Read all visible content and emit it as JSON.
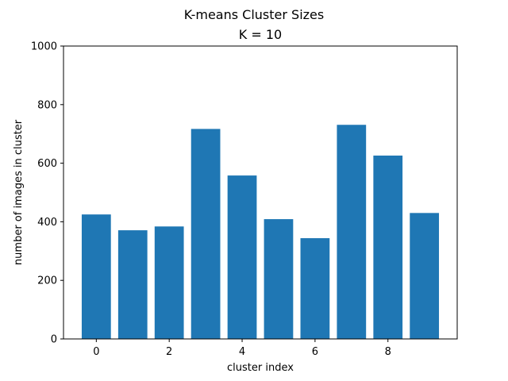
{
  "chart_data": {
    "type": "bar",
    "suptitle": "K-means Cluster Sizes",
    "title": "K = 10",
    "xlabel": "cluster index",
    "ylabel": "number of images in cluster",
    "categories": [
      0,
      1,
      2,
      3,
      4,
      5,
      6,
      7,
      8,
      9
    ],
    "values": [
      425,
      371,
      384,
      717,
      558,
      409,
      344,
      731,
      626,
      430
    ],
    "xlim": [
      -0.9,
      9.9
    ],
    "ylim": [
      0,
      1000
    ],
    "xticks": [
      0,
      2,
      4,
      6,
      8
    ],
    "yticks": [
      0,
      200,
      400,
      600,
      800,
      1000
    ],
    "bar_color": "#1f77b4",
    "grid": false
  }
}
